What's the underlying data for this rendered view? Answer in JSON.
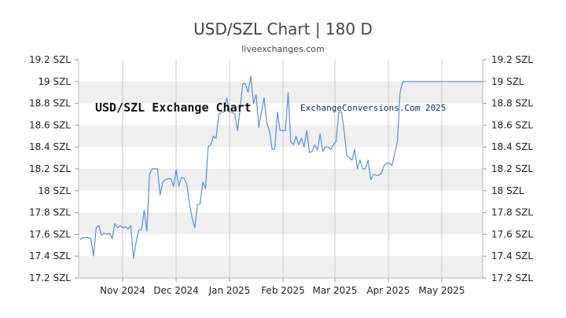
{
  "chart_data": {
    "type": "line",
    "title": "USD/SZL Chart | 180 D",
    "subtitle": "liveexchanges.com",
    "annotations": {
      "left": "USD/SZL Exchange Chart",
      "right": "ExchangeConversions.Com 2025"
    },
    "xlabel": "",
    "ylabel": "",
    "ylim": [
      17.2,
      19.2
    ],
    "y_ticks": [
      {
        "value": 17.2,
        "label": "17.2 SZL"
      },
      {
        "value": 17.4,
        "label": "17.4 SZL"
      },
      {
        "value": 17.6,
        "label": "17.6 SZL"
      },
      {
        "value": 17.8,
        "label": "17.8 SZL"
      },
      {
        "value": 18.0,
        "label": "18 SZL"
      },
      {
        "value": 18.2,
        "label": "18.2 SZL"
      },
      {
        "value": 18.4,
        "label": "18.4 SZL"
      },
      {
        "value": 18.6,
        "label": "18.6 SZL"
      },
      {
        "value": 18.8,
        "label": "18.8 SZL"
      },
      {
        "value": 19.0,
        "label": "19 SZL"
      },
      {
        "value": 19.2,
        "label": "19.2 SZL"
      }
    ],
    "x_ticks": [
      "Nov 2024",
      "Dec 2024",
      "Jan 2025",
      "Feb 2025",
      "Mar 2025",
      "Apr 2025",
      "May 2025"
    ],
    "grid": true,
    "line_color": "#5b8dd6",
    "series": [
      {
        "name": "",
        "values": [
          17.55,
          17.57,
          17.57,
          17.57,
          17.56,
          17.4,
          17.66,
          17.68,
          17.59,
          17.61,
          17.6,
          17.61,
          17.56,
          17.7,
          17.66,
          17.68,
          17.66,
          17.67,
          17.65,
          17.68,
          17.38,
          17.53,
          17.64,
          17.64,
          17.82,
          17.63,
          18.15,
          18.2,
          18.2,
          18.2,
          17.96,
          18.08,
          18.1,
          18.11,
          18.11,
          18.04,
          18.19,
          18.04,
          18.12,
          18.11,
          18.06,
          17.88,
          17.75,
          17.66,
          17.87,
          17.88,
          18.08,
          18.02,
          18.4,
          18.42,
          18.5,
          18.48,
          18.7,
          18.72,
          18.72,
          18.85,
          18.72,
          18.72,
          18.7,
          18.55,
          18.75,
          18.98,
          18.98,
          18.9,
          19.05,
          18.8,
          18.88,
          18.58,
          18.72,
          18.85,
          18.62,
          18.55,
          18.38,
          18.38,
          18.72,
          18.55,
          18.55,
          18.55,
          18.9,
          18.45,
          18.42,
          18.5,
          18.42,
          18.48,
          18.4,
          18.55,
          18.35,
          18.36,
          18.42,
          18.37,
          18.52,
          18.36,
          18.4,
          18.4,
          18.38,
          18.42,
          18.45,
          18.72,
          18.72,
          18.55,
          18.32,
          18.3,
          18.28,
          18.38,
          18.2,
          18.28,
          18.2,
          18.2,
          18.28,
          18.1,
          18.15,
          18.14,
          18.14,
          18.16,
          18.23,
          18.25,
          18.25,
          18.23,
          18.34,
          18.45,
          18.9,
          19.0,
          19.0,
          19.0,
          19.0,
          19.0,
          19.0,
          19.0,
          19.0,
          19.0,
          19.0,
          19.0,
          19.0,
          19.0,
          19.0,
          19.0,
          19.0,
          19.0,
          19.0,
          19.0,
          19.0,
          19.0,
          19.0,
          19.0,
          19.0,
          19.0,
          19.0,
          19.0,
          19.0,
          19.0,
          19.0,
          19.0
        ]
      }
    ]
  }
}
